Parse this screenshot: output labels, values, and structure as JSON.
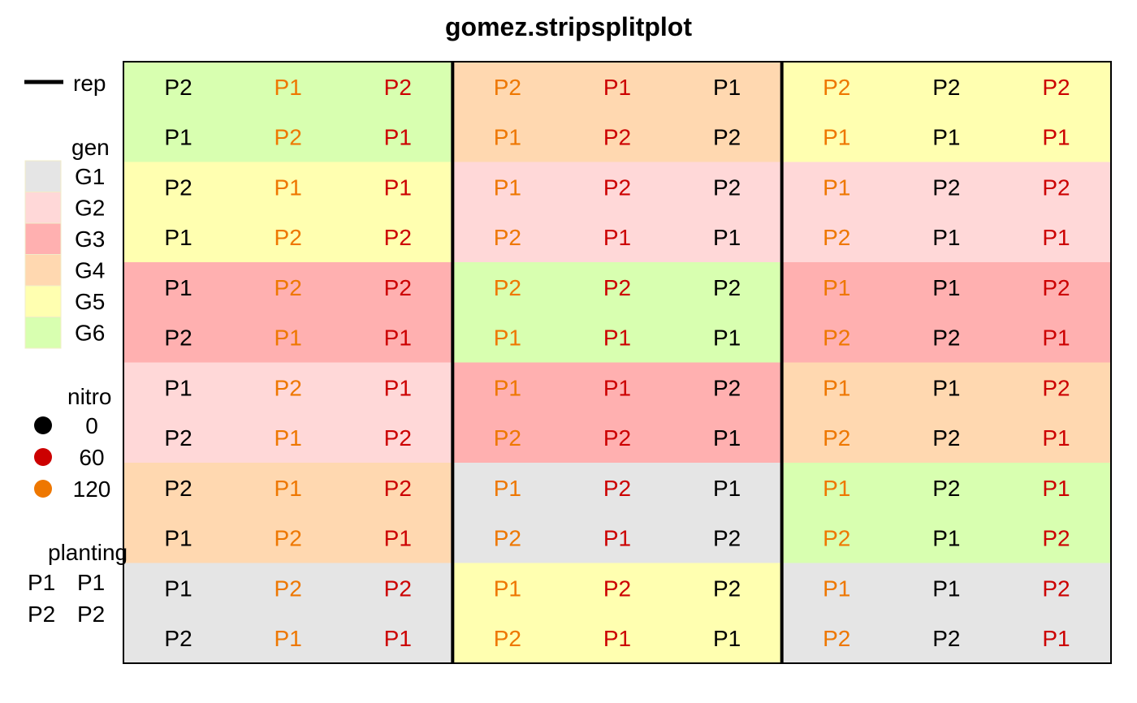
{
  "chart_data": {
    "type": "heatmap",
    "title": "gomez.stripsplitplot",
    "xlabel": "",
    "ylabel": "",
    "n_rows": 12,
    "n_cols": 9,
    "rep_columns": [
      [
        1,
        3
      ],
      [
        4,
        6
      ],
      [
        7,
        9
      ]
    ],
    "gen_colors": {
      "G1": "#e5e5e5",
      "G2": "#ffd8d8",
      "G3": "#ffb0b0",
      "G4": "#ffd8b0",
      "G5": "#ffffb0",
      "G6": "#d8ffb0"
    },
    "nitro_colors": {
      "0": "#000000",
      "60": "#cc0000",
      "120": "#ee7700"
    },
    "gen_strips": [
      [
        "G6",
        "G4",
        "G5"
      ],
      [
        "G5",
        "G2",
        "G2"
      ],
      [
        "G3",
        "G6",
        "G3"
      ],
      [
        "G2",
        "G3",
        "G4"
      ],
      [
        "G4",
        "G1",
        "G6"
      ],
      [
        "G1",
        "G5",
        "G1"
      ]
    ],
    "nitro_by_column": [
      "0",
      "120",
      "60",
      "120",
      "60",
      "0",
      "120",
      "0",
      "60"
    ],
    "planting": [
      [
        "P2",
        "P1",
        "P2",
        "P2",
        "P1",
        "P1",
        "P2",
        "P2",
        "P2"
      ],
      [
        "P1",
        "P2",
        "P1",
        "P1",
        "P2",
        "P2",
        "P1",
        "P1",
        "P1"
      ],
      [
        "P2",
        "P1",
        "P1",
        "P1",
        "P2",
        "P2",
        "P1",
        "P2",
        "P2"
      ],
      [
        "P1",
        "P2",
        "P2",
        "P2",
        "P1",
        "P1",
        "P2",
        "P1",
        "P1"
      ],
      [
        "P1",
        "P2",
        "P2",
        "P2",
        "P2",
        "P2",
        "P1",
        "P1",
        "P2"
      ],
      [
        "P2",
        "P1",
        "P1",
        "P1",
        "P1",
        "P1",
        "P2",
        "P2",
        "P1"
      ],
      [
        "P1",
        "P2",
        "P1",
        "P1",
        "P1",
        "P2",
        "P1",
        "P1",
        "P2"
      ],
      [
        "P2",
        "P1",
        "P2",
        "P2",
        "P2",
        "P1",
        "P2",
        "P2",
        "P1"
      ],
      [
        "P2",
        "P1",
        "P2",
        "P1",
        "P2",
        "P1",
        "P1",
        "P2",
        "P1"
      ],
      [
        "P1",
        "P2",
        "P1",
        "P2",
        "P1",
        "P2",
        "P2",
        "P1",
        "P2"
      ],
      [
        "P1",
        "P2",
        "P2",
        "P1",
        "P2",
        "P2",
        "P1",
        "P1",
        "P2"
      ],
      [
        "P2",
        "P1",
        "P1",
        "P2",
        "P1",
        "P1",
        "P2",
        "P2",
        "P1"
      ]
    ],
    "legend": {
      "placement": "left",
      "rep_title": "rep",
      "gen_title": "gen",
      "gen_labels": [
        "G1",
        "G2",
        "G3",
        "G4",
        "G5",
        "G6"
      ],
      "nitro_title": "nitro",
      "nitro_labels": [
        "0",
        "60",
        "120"
      ],
      "planting_title": "planting",
      "planting_keys": [
        {
          "symbol": "P1",
          "label": "P1"
        },
        {
          "symbol": "P2",
          "label": "P2"
        }
      ]
    },
    "grid": false
  }
}
